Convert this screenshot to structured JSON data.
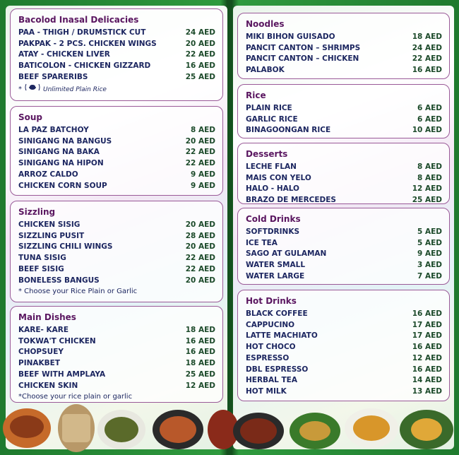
{
  "left": {
    "sections": [
      {
        "title": "Bacolod Inasal Delicacies",
        "items": [
          {
            "name": "PAA - THIGH / DRUMSTICK CUT",
            "price": "24 AED"
          },
          {
            "name": "PAKPAK - 2 PCS. CHICKEN WINGS",
            "price": "20 AED"
          },
          {
            "name": "ATAY - CHICKEN LIVER",
            "price": "22 AED"
          },
          {
            "name": "BATICOLON - CHICKEN GIZZARD",
            "price": "16 AED"
          },
          {
            "name": "BEEF SPARERIBS",
            "price": "25 AED"
          }
        ],
        "note_prefix": "*",
        "note": "Unlimited Plain Rice"
      },
      {
        "title": "Soup",
        "items": [
          {
            "name": "LA PAZ BATCHOY",
            "price": "8 AED"
          },
          {
            "name": "SINIGANG NA BANGUS",
            "price": "20 AED"
          },
          {
            "name": "SINIGANG NA BAKA",
            "price": "22 AED"
          },
          {
            "name": "SINIGANG NA HIPON",
            "price": "22 AED"
          },
          {
            "name": "ARROZ CALDO",
            "price": "9 AED"
          },
          {
            "name": "CHICKEN CORN SOUP",
            "price": "9 AED"
          }
        ]
      },
      {
        "title": "Sizzling",
        "items": [
          {
            "name": "CHICKEN SISIG",
            "price": "20 AED"
          },
          {
            "name": "SIZZLING PUSIT",
            "price": "28 AED"
          },
          {
            "name": "SIZZLING CHILI WINGS",
            "price": "20 AED"
          },
          {
            "name": "TUNA SISIG",
            "price": "22 AED"
          },
          {
            "name": "BEEF SISIG",
            "price": "22 AED"
          },
          {
            "name": "BONELESS BANGUS",
            "price": "20 AED"
          }
        ],
        "note": "* Choose your Rice Plain or Garlic"
      },
      {
        "title": "Main Dishes",
        "items": [
          {
            "name": "KARE- KARE",
            "price": "18 AED"
          },
          {
            "name": "TOKWA'T CHICKEN",
            "price": "16 AED"
          },
          {
            "name": "CHOPSUEY",
            "price": "16 AED"
          },
          {
            "name": "PINAKBET",
            "price": "18 AED"
          },
          {
            "name": "BEEF WITH AMPLAYA",
            "price": "25 AED"
          },
          {
            "name": "CHICKEN SKIN",
            "price": "12 AED"
          }
        ],
        "note": "*Choose your rice plain or garlic"
      }
    ]
  },
  "right": {
    "sections": [
      {
        "title": "Noodles",
        "items": [
          {
            "name": "MIKI BIHON GUISADO",
            "price": "18 AED"
          },
          {
            "name": "PANCIT CANTON – SHRIMPS",
            "price": "24 AED"
          },
          {
            "name": "PANCIT CANTON – CHICKEN",
            "price": "22 AED"
          },
          {
            "name": "PALABOK",
            "price": "16 AED"
          }
        ]
      },
      {
        "title": "Rice",
        "items": [
          {
            "name": "PLAIN RICE",
            "price": "6 AED"
          },
          {
            "name": "GARLIC RICE",
            "price": "6 AED"
          },
          {
            "name": "BINAGOONGAN RICE",
            "price": "10 AED"
          }
        ]
      },
      {
        "title": "Desserts",
        "items": [
          {
            "name": "LECHE FLAN",
            "price": "8 AED"
          },
          {
            "name": "MAIS CON YELO",
            "price": "8 AED"
          },
          {
            "name": "HALO - HALO",
            "price": "12 AED"
          },
          {
            "name": "BRAZO DE MERCEDES",
            "price": "25 AED"
          }
        ]
      },
      {
        "title": "Cold Drinks",
        "items": [
          {
            "name": "SOFTDRINKS",
            "price": "5 AED"
          },
          {
            "name": "ICE TEA",
            "price": "5 AED"
          },
          {
            "name": "SAGO AT GULAMAN",
            "price": "9 AED"
          },
          {
            "name": "WATER SMALL",
            "price": "3 AED"
          },
          {
            "name": "WATER LARGE",
            "price": "7 AED"
          }
        ]
      },
      {
        "title": "Hot Drinks",
        "items": [
          {
            "name": "BLACK COFFEE",
            "price": "16 AED"
          },
          {
            "name": "CAPPUCINO",
            "price": "17 AED"
          },
          {
            "name": "LATTE MACHIATO",
            "price": "17 AED"
          },
          {
            "name": "HOT CHOCO",
            "price": "16 AED"
          },
          {
            "name": "ESPRESSO",
            "price": "12 AED"
          },
          {
            "name": "DBL ESPRESSO",
            "price": "16 AED"
          },
          {
            "name": "HERBAL TEA",
            "price": "14 AED"
          },
          {
            "name": "HOT MILK",
            "price": "13 AED"
          }
        ]
      }
    ]
  }
}
